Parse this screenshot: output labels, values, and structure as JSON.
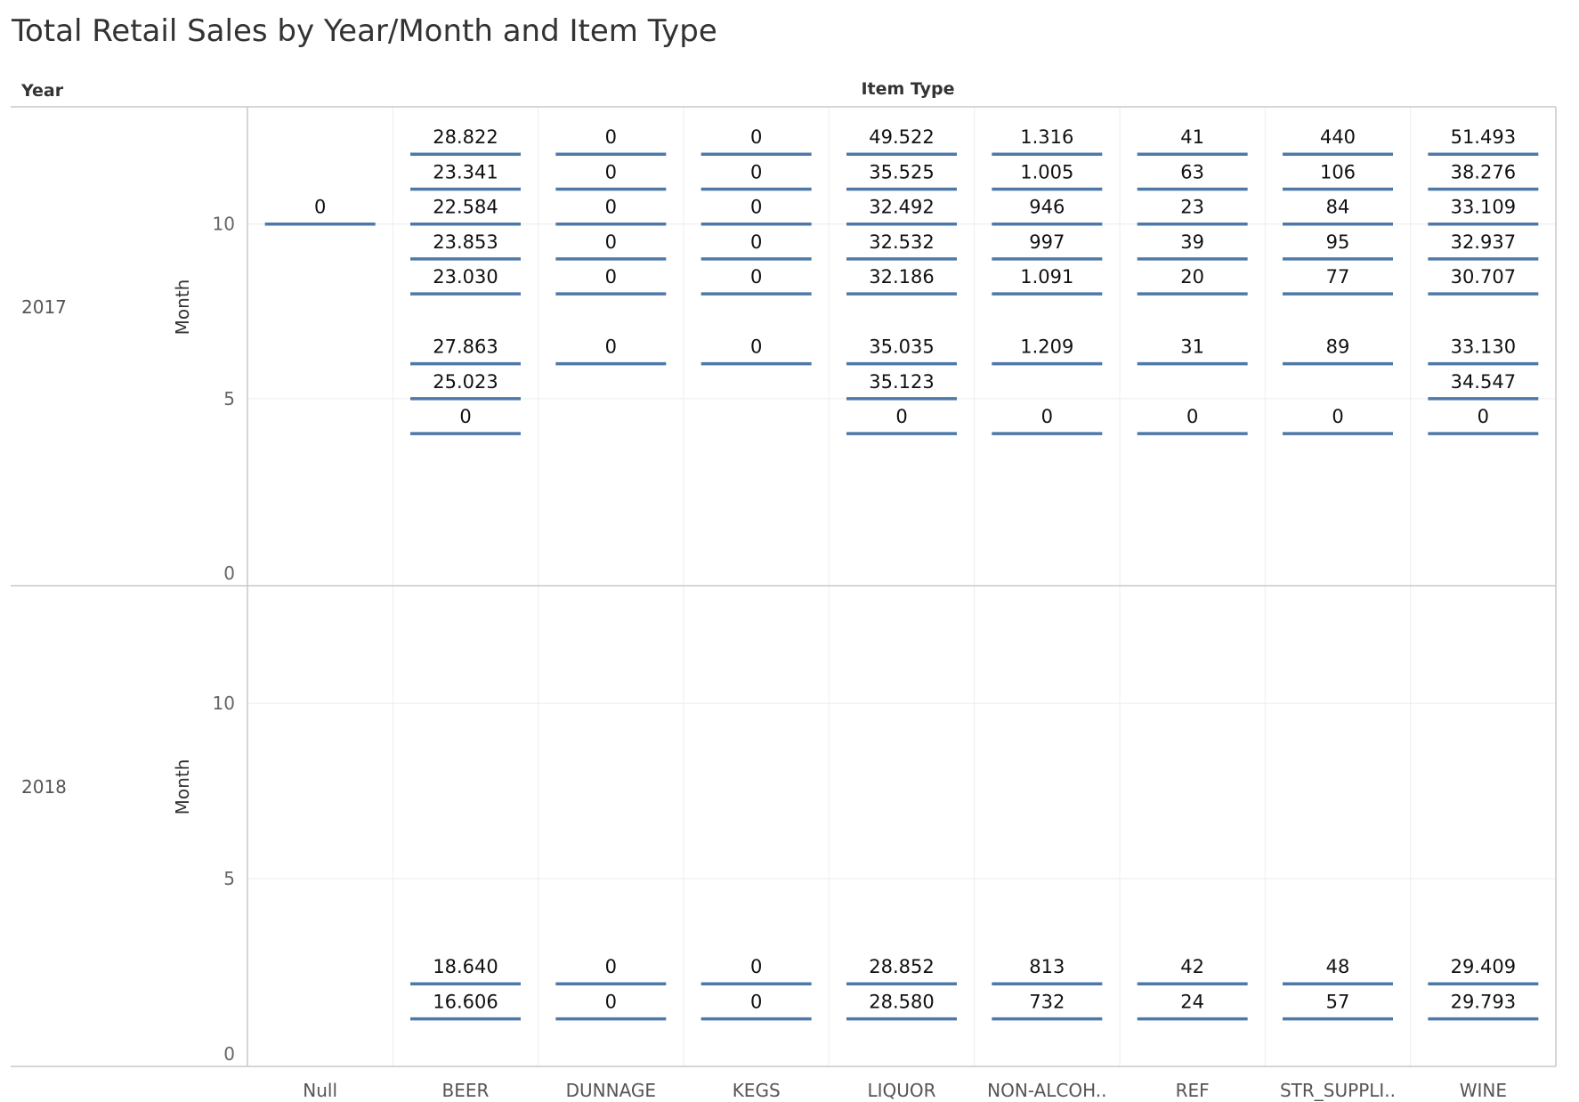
{
  "title": "Total Retail Sales by Year/Month and Item Type",
  "headers": {
    "row": "Year",
    "column": "Item Type"
  },
  "colors": {
    "mark": "#4e79a7",
    "text": "#111111"
  },
  "chart_data": {
    "type": "table",
    "mark": "gantt-bar with value label",
    "column_field": "Item Type",
    "row_field": "Year",
    "y_axis": {
      "label": "Month",
      "range": [
        0,
        13
      ],
      "ticks": [
        "0",
        "5",
        "10"
      ]
    },
    "categories": [
      "Null",
      "BEER",
      "DUNNAGE",
      "KEGS",
      "LIQUOR",
      "NON-ALCOH..",
      "REF",
      "STR_SUPPLI..",
      "WINE"
    ],
    "panels": [
      {
        "year": "2017",
        "cells": [
          {
            "category": "Null",
            "month": 10,
            "label": "0"
          },
          {
            "category": "BEER",
            "month": 12,
            "label": "28.822"
          },
          {
            "category": "BEER",
            "month": 11,
            "label": "23.341"
          },
          {
            "category": "BEER",
            "month": 10,
            "label": "22.584"
          },
          {
            "category": "BEER",
            "month": 9,
            "label": "23.853"
          },
          {
            "category": "BEER",
            "month": 8,
            "label": "23.030"
          },
          {
            "category": "BEER",
            "month": 6,
            "label": "27.863"
          },
          {
            "category": "BEER",
            "month": 5,
            "label": "25.023"
          },
          {
            "category": "BEER",
            "month": 4,
            "label": "0"
          },
          {
            "category": "DUNNAGE",
            "month": 12,
            "label": "0"
          },
          {
            "category": "DUNNAGE",
            "month": 11,
            "label": "0"
          },
          {
            "category": "DUNNAGE",
            "month": 10,
            "label": "0"
          },
          {
            "category": "DUNNAGE",
            "month": 9,
            "label": "0"
          },
          {
            "category": "DUNNAGE",
            "month": 8,
            "label": "0"
          },
          {
            "category": "DUNNAGE",
            "month": 6,
            "label": "0"
          },
          {
            "category": "KEGS",
            "month": 12,
            "label": "0"
          },
          {
            "category": "KEGS",
            "month": 11,
            "label": "0"
          },
          {
            "category": "KEGS",
            "month": 10,
            "label": "0"
          },
          {
            "category": "KEGS",
            "month": 9,
            "label": "0"
          },
          {
            "category": "KEGS",
            "month": 8,
            "label": "0"
          },
          {
            "category": "KEGS",
            "month": 6,
            "label": "0"
          },
          {
            "category": "LIQUOR",
            "month": 12,
            "label": "49.522"
          },
          {
            "category": "LIQUOR",
            "month": 11,
            "label": "35.525"
          },
          {
            "category": "LIQUOR",
            "month": 10,
            "label": "32.492"
          },
          {
            "category": "LIQUOR",
            "month": 9,
            "label": "32.532"
          },
          {
            "category": "LIQUOR",
            "month": 8,
            "label": "32.186"
          },
          {
            "category": "LIQUOR",
            "month": 6,
            "label": "35.035"
          },
          {
            "category": "LIQUOR",
            "month": 5,
            "label": "35.123"
          },
          {
            "category": "LIQUOR",
            "month": 4,
            "label": "0"
          },
          {
            "category": "NON-ALCOH..",
            "month": 12,
            "label": "1.316"
          },
          {
            "category": "NON-ALCOH..",
            "month": 11,
            "label": "1.005"
          },
          {
            "category": "NON-ALCOH..",
            "month": 10,
            "label": "946"
          },
          {
            "category": "NON-ALCOH..",
            "month": 9,
            "label": "997"
          },
          {
            "category": "NON-ALCOH..",
            "month": 8,
            "label": "1.091"
          },
          {
            "category": "NON-ALCOH..",
            "month": 6,
            "label": "1.209"
          },
          {
            "category": "NON-ALCOH..",
            "month": 4,
            "label": "0"
          },
          {
            "category": "REF",
            "month": 12,
            "label": "41"
          },
          {
            "category": "REF",
            "month": 11,
            "label": "63"
          },
          {
            "category": "REF",
            "month": 10,
            "label": "23"
          },
          {
            "category": "REF",
            "month": 9,
            "label": "39"
          },
          {
            "category": "REF",
            "month": 8,
            "label": "20"
          },
          {
            "category": "REF",
            "month": 6,
            "label": "31"
          },
          {
            "category": "REF",
            "month": 4,
            "label": "0"
          },
          {
            "category": "STR_SUPPLI..",
            "month": 12,
            "label": "440"
          },
          {
            "category": "STR_SUPPLI..",
            "month": 11,
            "label": "106"
          },
          {
            "category": "STR_SUPPLI..",
            "month": 10,
            "label": "84"
          },
          {
            "category": "STR_SUPPLI..",
            "month": 9,
            "label": "95"
          },
          {
            "category": "STR_SUPPLI..",
            "month": 8,
            "label": "77"
          },
          {
            "category": "STR_SUPPLI..",
            "month": 6,
            "label": "89"
          },
          {
            "category": "STR_SUPPLI..",
            "month": 4,
            "label": "0"
          },
          {
            "category": "WINE",
            "month": 12,
            "label": "51.493"
          },
          {
            "category": "WINE",
            "month": 11,
            "label": "38.276"
          },
          {
            "category": "WINE",
            "month": 10,
            "label": "33.109"
          },
          {
            "category": "WINE",
            "month": 9,
            "label": "32.937"
          },
          {
            "category": "WINE",
            "month": 8,
            "label": "30.707"
          },
          {
            "category": "WINE",
            "month": 6,
            "label": "33.130"
          },
          {
            "category": "WINE",
            "month": 5,
            "label": "34.547"
          },
          {
            "category": "WINE",
            "month": 4,
            "label": "0"
          }
        ]
      },
      {
        "year": "2018",
        "cells": [
          {
            "category": "BEER",
            "month": 2,
            "label": "18.640"
          },
          {
            "category": "BEER",
            "month": 1,
            "label": "16.606"
          },
          {
            "category": "DUNNAGE",
            "month": 2,
            "label": "0"
          },
          {
            "category": "DUNNAGE",
            "month": 1,
            "label": "0"
          },
          {
            "category": "KEGS",
            "month": 2,
            "label": "0"
          },
          {
            "category": "KEGS",
            "month": 1,
            "label": "0"
          },
          {
            "category": "LIQUOR",
            "month": 2,
            "label": "28.852"
          },
          {
            "category": "LIQUOR",
            "month": 1,
            "label": "28.580"
          },
          {
            "category": "NON-ALCOH..",
            "month": 2,
            "label": "813"
          },
          {
            "category": "NON-ALCOH..",
            "month": 1,
            "label": "732"
          },
          {
            "category": "REF",
            "month": 2,
            "label": "42"
          },
          {
            "category": "REF",
            "month": 1,
            "label": "24"
          },
          {
            "category": "STR_SUPPLI..",
            "month": 2,
            "label": "48"
          },
          {
            "category": "STR_SUPPLI..",
            "month": 1,
            "label": "57"
          },
          {
            "category": "WINE",
            "month": 2,
            "label": "29.409"
          },
          {
            "category": "WINE",
            "month": 1,
            "label": "29.793"
          }
        ]
      }
    ]
  }
}
